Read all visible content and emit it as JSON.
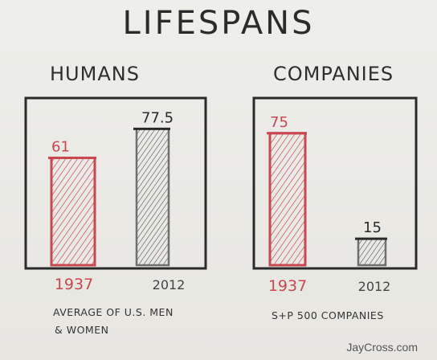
{
  "title": "LIFESPANS",
  "credit": "JayCross.com",
  "colors": {
    "red": "#c9474f",
    "ink": "#2a2a2a",
    "gray": "#6f6f6f"
  },
  "chart_data": [
    {
      "type": "bar",
      "title": "HUMANS",
      "caption_line1": "AVERAGE OF U.S. MEN",
      "caption_line2": "& WOMEN",
      "categories": [
        "1937",
        "2012"
      ],
      "values": [
        61,
        77.5
      ],
      "value_labels": [
        "61",
        "77.5"
      ],
      "bar_colors": [
        "#c9474f",
        "#6f6f6f"
      ],
      "ylim": [
        0,
        95
      ]
    },
    {
      "type": "bar",
      "title": "COMPANIES",
      "caption_line1": "S+P 500 COMPANIES",
      "caption_line2": "",
      "categories": [
        "1937",
        "2012"
      ],
      "values": [
        75,
        15
      ],
      "value_labels": [
        "75",
        "15"
      ],
      "bar_colors": [
        "#c9474f",
        "#6f6f6f"
      ],
      "ylim": [
        0,
        95
      ]
    }
  ]
}
